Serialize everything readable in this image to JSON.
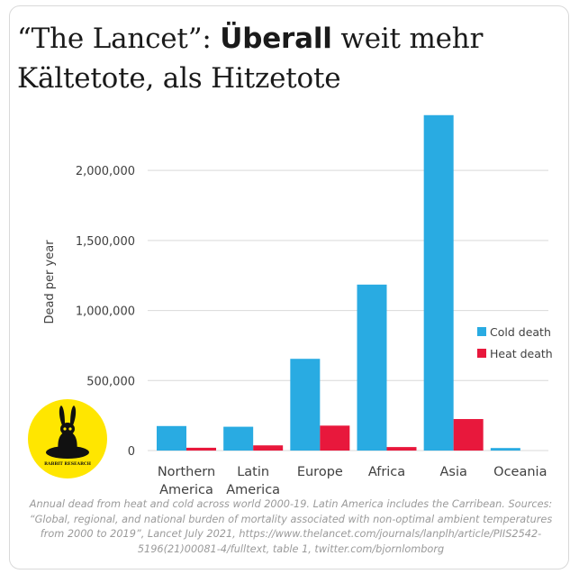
{
  "headline": {
    "part1": "“The Lancet”: ",
    "bold": "Überall",
    "part2": " weit mehr Kältetote, als Hitzetote"
  },
  "chart_data": {
    "type": "bar",
    "categories": [
      [
        "Northern",
        "America"
      ],
      [
        "Latin",
        "America"
      ],
      [
        "Europe"
      ],
      [
        "Africa"
      ],
      [
        "Asia"
      ],
      [
        "Oceania"
      ]
    ],
    "series": [
      {
        "name": "Cold death",
        "color": "#29abe2",
        "values": [
          175000,
          170000,
          655000,
          1185000,
          2395000,
          18000
        ]
      },
      {
        "name": "Heat death",
        "color": "#e8183c",
        "values": [
          20000,
          37000,
          178000,
          25000,
          225000,
          0
        ]
      }
    ],
    "ylabel": "Dead per year",
    "ylim": [
      0,
      2400000
    ],
    "yticks": [
      0,
      500000,
      1000000,
      1500000,
      2000000
    ],
    "ytick_labels": [
      "0",
      "500,000",
      "1,000,000",
      "1,500,000",
      "2,000,000"
    ],
    "grid": true,
    "legend_position": "right"
  },
  "footnote": "Annual dead from heat and cold across world 2000-19. Latin America includes the Carribean. Sources: “Global, regional, and national burden of mortality associated with non-optimal ambient temperatures from 2000 to 2019”, Lancet July 2021, https://www.thelancet.com/journals/lanplh/article/PIIS2542-5196(21)00081-4/fulltext, table 1, twitter.com/bjornlomborg",
  "logo": {
    "text": "RABBIT RESEARCH",
    "bg_color": "#ffe600",
    "icon": "rabbit-icon"
  }
}
